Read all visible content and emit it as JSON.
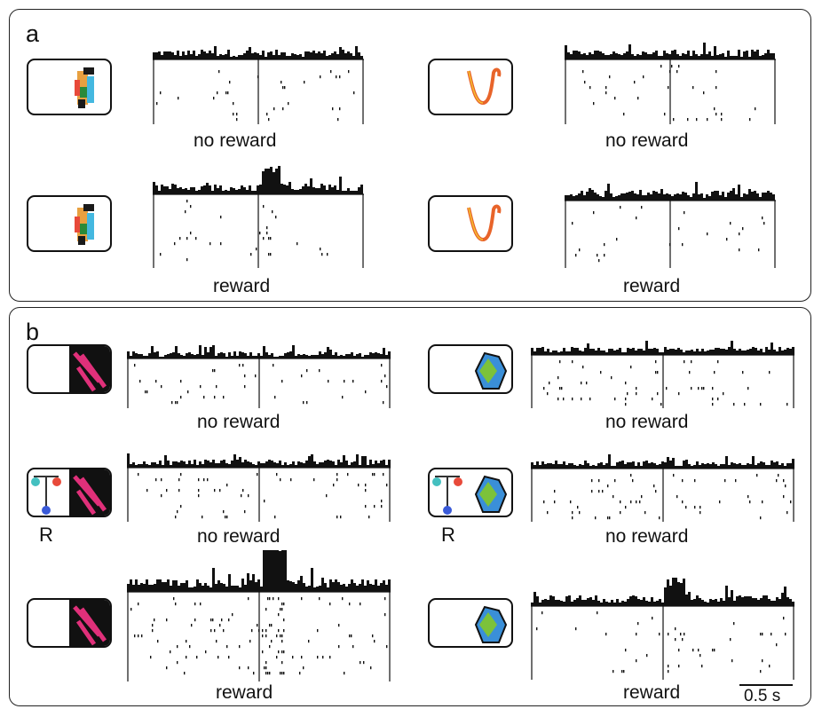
{
  "panels": [
    {
      "letter": "a"
    },
    {
      "letter": "b"
    }
  ],
  "labels": {
    "no_reward": "no reward",
    "reward": "reward",
    "cue": "R"
  },
  "scale_bar": "0.5 s",
  "stimuli": {
    "a_left": "colored-figure-icon",
    "a_right": "squiggle-icon",
    "b_left": "pink-figure-icon",
    "b_right": "blue-green-shape-icon",
    "cue": "reward-cue-icon"
  },
  "colors": {
    "squiggle": "#e8642a",
    "pink": "#e0307a",
    "blue_shape": "#3a8fd8",
    "green_shape": "#7cc23a"
  }
}
